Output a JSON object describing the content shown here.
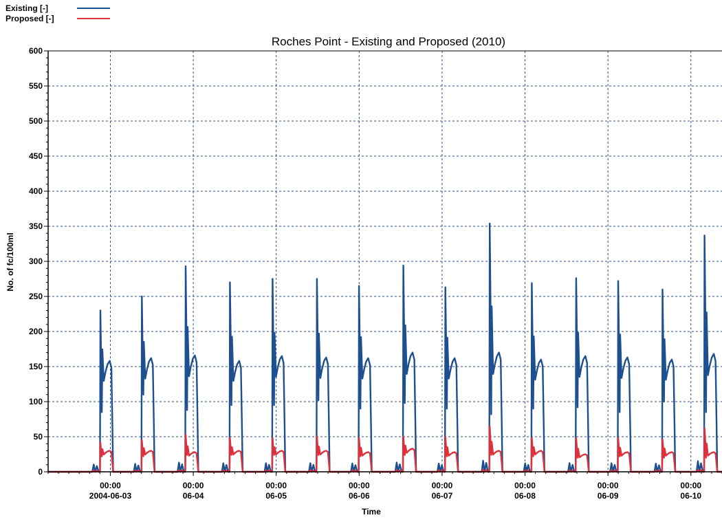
{
  "legend": {
    "existing_label": "Existing  [-]",
    "proposed_label": "Proposed [-]"
  },
  "colors": {
    "existing": "#1e4f8f",
    "proposed": "#e0303a",
    "grid": "#2a4d8a",
    "axis": "#000000"
  },
  "chart_data": {
    "type": "line",
    "title": "Roches Point - Existing and Proposed (2010)",
    "xlabel": "Time",
    "ylabel": "No. of fc/100ml",
    "ylim": [
      0,
      600
    ],
    "yticks": [
      0,
      50,
      100,
      150,
      200,
      250,
      300,
      350,
      400,
      450,
      500,
      550,
      600
    ],
    "xlim": [
      "2004-06-02 06:00",
      "2004-06-10 09:00"
    ],
    "grid": true,
    "legend_position": "top-left",
    "x_ticks": [
      {
        "x": "2004-06-03 00:00",
        "line1": "00:00",
        "line2": "2004-06-03"
      },
      {
        "x": "2004-06-04 00:00",
        "line1": "00:00",
        "line2": "06-04"
      },
      {
        "x": "2004-06-05 00:00",
        "line1": "00:00",
        "line2": "06-05"
      },
      {
        "x": "2004-06-06 00:00",
        "line1": "00:00",
        "line2": "06-06"
      },
      {
        "x": "2004-06-07 00:00",
        "line1": "00:00",
        "line2": "06-07"
      },
      {
        "x": "2004-06-08 00:00",
        "line1": "00:00",
        "line2": "06-08"
      },
      {
        "x": "2004-06-09 00:00",
        "line1": "00:00",
        "line2": "06-09"
      },
      {
        "x": "2004-06-10 00:00",
        "line1": "00:00",
        "line2": "06-10"
      }
    ],
    "series": [
      {
        "name": "Existing",
        "key": "existing",
        "events": [
          {
            "start": "2004-06-02 21:00",
            "peak": 230,
            "trough": 85,
            "end_val": 158
          },
          {
            "start": "2004-06-03 09:00",
            "peak": 250,
            "trough": 110,
            "end_val": 162
          },
          {
            "start": "2004-06-03 21:40",
            "peak": 293,
            "trough": 88,
            "end_val": 166
          },
          {
            "start": "2004-06-04 10:30",
            "peak": 270,
            "trough": 95,
            "end_val": 158
          },
          {
            "start": "2004-06-04 22:50",
            "peak": 275,
            "trough": 95,
            "end_val": 165
          },
          {
            "start": "2004-06-05 11:40",
            "peak": 275,
            "trough": 102,
            "end_val": 163
          },
          {
            "start": "2004-06-05 23:50",
            "peak": 265,
            "trough": 90,
            "end_val": 162
          },
          {
            "start": "2004-06-06 12:40",
            "peak": 294,
            "trough": 98,
            "end_val": 170
          },
          {
            "start": "2004-06-07 00:50",
            "peak": 263,
            "trough": 90,
            "end_val": 162
          },
          {
            "start": "2004-06-07 13:40",
            "peak": 354,
            "trough": 82,
            "end_val": 170
          },
          {
            "start": "2004-06-08 01:50",
            "peak": 269,
            "trough": 90,
            "end_val": 160
          },
          {
            "start": "2004-06-08 14:40",
            "peak": 276,
            "trough": 92,
            "end_val": 165
          },
          {
            "start": "2004-06-09 02:50",
            "peak": 272,
            "trough": 85,
            "end_val": 163
          },
          {
            "start": "2004-06-09 15:40",
            "peak": 260,
            "trough": 100,
            "end_val": 160
          },
          {
            "start": "2004-06-10 03:50",
            "peak": 337,
            "trough": 85,
            "end_val": 168
          }
        ]
      },
      {
        "name": "Proposed",
        "key": "proposed",
        "events": [
          {
            "start": "2004-06-02 21:00",
            "peak": 42,
            "trough": 22,
            "end_val": 30
          },
          {
            "start": "2004-06-03 09:00",
            "peak": 45,
            "trough": 22,
            "end_val": 30
          },
          {
            "start": "2004-06-03 21:40",
            "peak": 53,
            "trough": 24,
            "end_val": 28
          },
          {
            "start": "2004-06-04 10:30",
            "peak": 48,
            "trough": 24,
            "end_val": 30
          },
          {
            "start": "2004-06-04 22:50",
            "peak": 48,
            "trough": 24,
            "end_val": 30
          },
          {
            "start": "2004-06-05 11:40",
            "peak": 50,
            "trough": 24,
            "end_val": 30
          },
          {
            "start": "2004-06-05 23:50",
            "peak": 48,
            "trough": 22,
            "end_val": 28
          },
          {
            "start": "2004-06-06 12:40",
            "peak": 50,
            "trough": 24,
            "end_val": 33
          },
          {
            "start": "2004-06-07 00:50",
            "peak": 50,
            "trough": 22,
            "end_val": 28
          },
          {
            "start": "2004-06-07 13:40",
            "peak": 65,
            "trough": 24,
            "end_val": 30
          },
          {
            "start": "2004-06-08 01:50",
            "peak": 48,
            "trough": 22,
            "end_val": 30
          },
          {
            "start": "2004-06-08 14:40",
            "peak": 48,
            "trough": 20,
            "end_val": 25
          },
          {
            "start": "2004-06-09 02:50",
            "peak": 48,
            "trough": 22,
            "end_val": 28
          },
          {
            "start": "2004-06-09 15:40",
            "peak": 46,
            "trough": 20,
            "end_val": 28
          },
          {
            "start": "2004-06-10 03:50",
            "peak": 62,
            "trough": 20,
            "end_val": 28
          }
        ]
      }
    ]
  }
}
